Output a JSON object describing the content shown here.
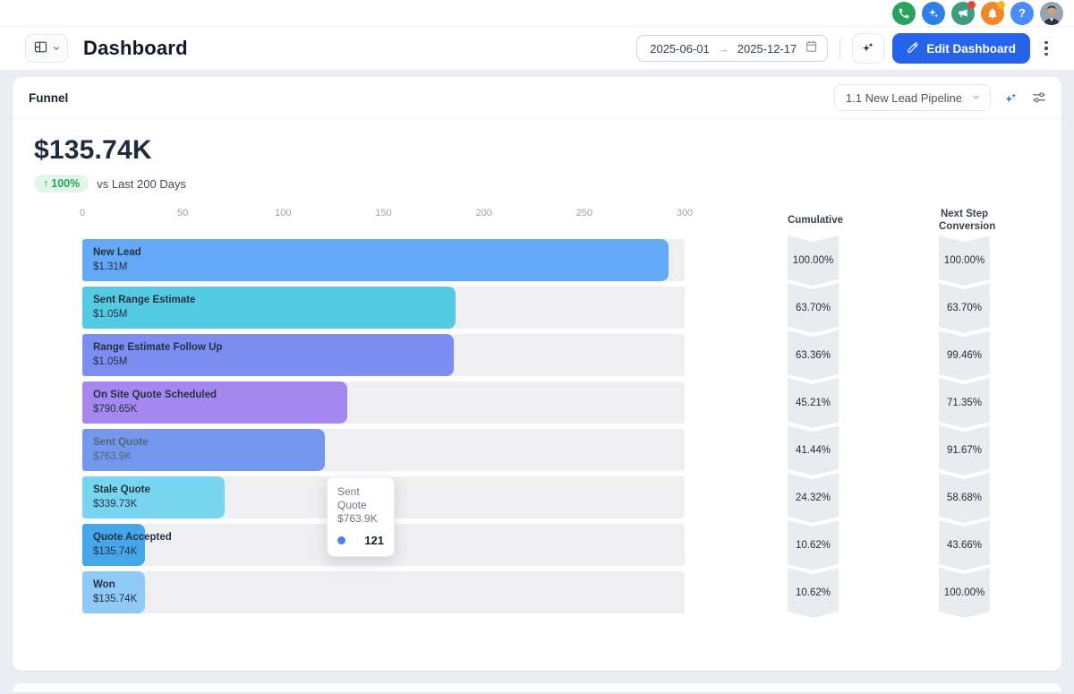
{
  "topbar": {
    "icons": [
      {
        "name": "phone",
        "bg": "#27a35d"
      },
      {
        "name": "ai-assistant",
        "bg": "#2e7fe8"
      },
      {
        "name": "announcements",
        "bg": "#3e9b80",
        "badge": "#e8453c"
      },
      {
        "name": "notifications",
        "bg": "#f0882a",
        "badge": "#f3b72b"
      },
      {
        "name": "help",
        "bg": "#4a8cf7",
        "glyph": "?"
      }
    ]
  },
  "header": {
    "title": "Dashboard",
    "date_start": "2025-06-01",
    "date_end": "2025-12-17",
    "range_separator": "→",
    "edit_button": "Edit Dashboard"
  },
  "panel": {
    "title": "Funnel",
    "pipeline_selector": "1.1 New Lead Pipeline",
    "kpi": {
      "value": "$135.74K",
      "change_arrow": "↑",
      "change": "100%",
      "comparison": "vs Last 200 Days"
    },
    "columns": {
      "cumulative": "Cumulative",
      "next_step_line1": "Next Step",
      "next_step_line2": "Conversion"
    }
  },
  "chart_data": {
    "type": "funnel",
    "title": "Funnel — 1.1 New Lead Pipeline",
    "x_ticks": [
      0,
      50,
      100,
      150,
      200,
      250,
      300
    ],
    "xlim": [
      0,
      300
    ],
    "stages": [
      {
        "label": "New Lead",
        "value_label": "$1.31M",
        "count": 292,
        "cumulative": "100.00%",
        "next_step_conversion": "100.00%",
        "color": "#64a9f6"
      },
      {
        "label": "Sent Range Estimate",
        "value_label": "$1.05M",
        "count": 186,
        "cumulative": "63.70%",
        "next_step_conversion": "63.70%",
        "color": "#55cbe3"
      },
      {
        "label": "Range Estimate  Follow Up",
        "value_label": "$1.05M",
        "count": 185,
        "cumulative": "63.36%",
        "next_step_conversion": "99.46%",
        "color": "#7d8ef2"
      },
      {
        "label": "On Site Quote Scheduled",
        "value_label": "$790.65K",
        "count": 132,
        "cumulative": "45.21%",
        "next_step_conversion": "71.35%",
        "color": "#a588ef"
      },
      {
        "label": "Sent Quote",
        "value_label": "$763.9K",
        "count": 121,
        "cumulative": "41.44%",
        "next_step_conversion": "91.67%",
        "color": "#7297ec",
        "dimmed": true
      },
      {
        "label": "Stale Quote",
        "value_label": "$339.73K",
        "count": 71,
        "cumulative": "24.32%",
        "next_step_conversion": "58.68%",
        "color": "#77d5f0"
      },
      {
        "label": "Quote Accepted",
        "value_label": "$135.74K",
        "count": 31,
        "cumulative": "10.62%",
        "next_step_conversion": "43.66%",
        "color": "#45a6ea"
      },
      {
        "label": "Won",
        "value_label": "$135.74K",
        "count": 31,
        "cumulative": "10.62%",
        "next_step_conversion": "100.00%",
        "color": "#8fc9f6"
      }
    ],
    "tooltip": {
      "stage": "Sent Quote",
      "value": "$763.9K",
      "count": "121",
      "dot_color": "#4f82e8"
    }
  }
}
